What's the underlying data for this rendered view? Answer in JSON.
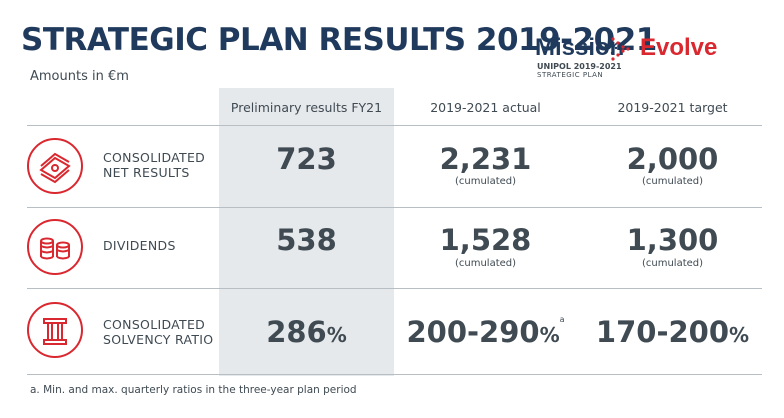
{
  "title": "STRATEGIC PLAN RESULTS 2019-2021",
  "subtitle": "Amounts in €m",
  "logo": {
    "word1": "Mission",
    "word2": "Evolve",
    "sub1": "UNIPOL 2019-2021",
    "sub2": "STRATEGIC PLAN"
  },
  "columns": [
    "Preliminary results FY21",
    "2019-2021 actual",
    "2019-2021 target"
  ],
  "rows": [
    {
      "label_line1": "CONSOLIDATED",
      "label_line2": "NET RESULTS",
      "prelim": "723",
      "actual": "2,231",
      "actual_note": "(cumulated)",
      "target": "2,000",
      "target_note": "(cumulated)"
    },
    {
      "label_line1": "DIVIDENDS",
      "label_line2": "",
      "prelim": "538",
      "actual": "1,528",
      "actual_note": "(cumulated)",
      "target": "1,300",
      "target_note": "(cumulated)"
    },
    {
      "label_line1": "CONSOLIDATED",
      "label_line2": "SOLVENCY RATIO",
      "prelim": "286",
      "prelim_unit": "%",
      "actual": "200-290",
      "actual_unit": "%",
      "actual_sup": "a",
      "target": "170-200",
      "target_unit": "%"
    }
  ],
  "footnote": "a. Min. and max. quarterly ratios in the three-year plan period",
  "colors": {
    "navy": "#1f3a5c",
    "red": "#d9282f",
    "shade": "#e6e9ec",
    "text": "#3f4a52"
  }
}
